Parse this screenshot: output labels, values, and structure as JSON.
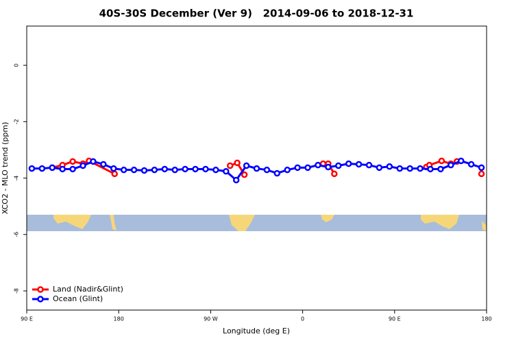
{
  "chart_data": {
    "type": "line",
    "title": "40S-30S December (Ver 9)   2014-09-06 to 2018-12-31",
    "x_label": "Longitude (deg E)",
    "y_label": "XCO2 - MLO trend (ppm)",
    "xlim": [
      90,
      540
    ],
    "xticks": [
      {
        "value": 90,
        "label": "90 E"
      },
      180,
      {
        "value": 270,
        "label": "90 W"
      },
      {
        "value": 360,
        "label": "0"
      },
      {
        "value": 450,
        "label": "90 E"
      },
      {
        "value": 540,
        "label": "180"
      }
    ],
    "ylim": [
      -8.68,
      1.39
    ],
    "yticks": [
      0,
      -2,
      -4,
      -6,
      -8
    ],
    "legend": "bottom-left",
    "series": [
      {
        "name": "Land (Nadir&Glint)",
        "color": "#ff0000",
        "x": [
          115,
          125,
          135,
          145,
          151,
          176,
          null,
          289,
          296,
          303,
          null,
          380,
          385,
          391,
          null,
          481,
          484,
          496,
          505,
          511,
          null,
          535
        ],
        "values": [
          -3.63,
          -3.54,
          -3.41,
          -3.49,
          -3.39,
          -3.85,
          null,
          -3.56,
          -3.46,
          -3.88,
          null,
          -3.49,
          -3.49,
          -3.85,
          null,
          -3.61,
          -3.54,
          -3.39,
          -3.49,
          -3.41,
          null,
          -3.85
        ]
      },
      {
        "name": "Ocean (Glint)",
        "color": "#0000ff",
        "x": [
          95,
          105,
          115,
          125,
          135,
          145,
          155,
          165,
          175,
          185,
          195,
          205,
          215,
          225,
          235,
          245,
          255,
          265,
          275,
          285,
          295,
          305,
          315,
          325,
          335,
          345,
          355,
          365,
          375,
          385,
          395,
          405,
          415,
          425,
          435,
          445,
          455,
          465,
          475,
          485,
          495,
          505,
          515,
          525,
          535
        ],
        "values": [
          -3.66,
          -3.66,
          -3.63,
          -3.68,
          -3.68,
          -3.56,
          -3.41,
          -3.51,
          -3.66,
          -3.71,
          -3.71,
          -3.73,
          -3.71,
          -3.68,
          -3.71,
          -3.68,
          -3.68,
          -3.68,
          -3.71,
          -3.76,
          -4.07,
          -3.56,
          -3.66,
          -3.71,
          -3.83,
          -3.71,
          -3.63,
          -3.63,
          -3.54,
          -3.61,
          -3.56,
          -3.49,
          -3.51,
          -3.54,
          -3.63,
          -3.59,
          -3.66,
          -3.66,
          -3.66,
          -3.68,
          -3.68,
          -3.54,
          -3.39,
          -3.51,
          -3.63
        ]
      }
    ]
  }
}
